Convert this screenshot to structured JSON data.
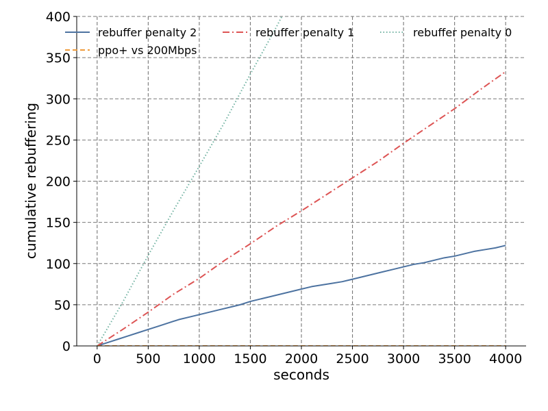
{
  "chart_data": {
    "type": "line",
    "xlabel": "seconds",
    "ylabel": "cumulative rebuffering",
    "xlim": [
      -200,
      4200
    ],
    "ylim": [
      0,
      400
    ],
    "xticks": [
      0,
      500,
      1000,
      1500,
      2000,
      2500,
      3000,
      3500,
      4000
    ],
    "yticks": [
      0,
      50,
      100,
      150,
      200,
      250,
      300,
      350,
      400
    ],
    "grid": true,
    "legend_position": "top",
    "series": [
      {
        "name": "rebuffer penalty 2",
        "color": "#4c72a0",
        "style": "solid",
        "x": [
          0,
          100,
          200,
          300,
          400,
          500,
          600,
          700,
          800,
          900,
          1000,
          1100,
          1200,
          1300,
          1400,
          1500,
          1600,
          1700,
          1800,
          1900,
          2000,
          2100,
          2200,
          2300,
          2400,
          2500,
          2600,
          2700,
          2800,
          2900,
          3000,
          3100,
          3200,
          3300,
          3400,
          3500,
          3600,
          3700,
          3800,
          3900,
          4000
        ],
        "y": [
          0,
          4,
          8,
          12,
          16,
          20,
          24,
          28,
          32,
          35,
          38,
          41,
          44,
          47,
          50,
          54,
          57,
          60,
          63,
          66,
          69,
          72,
          74,
          76,
          78,
          81,
          84,
          87,
          90,
          93,
          96,
          99,
          101,
          104,
          107,
          109,
          112,
          115,
          117,
          119,
          122
        ]
      },
      {
        "name": "rebuffer penalty 1",
        "color": "#dd5454",
        "style": "dashdot",
        "x": [
          0,
          250,
          500,
          750,
          1000,
          1250,
          1500,
          1750,
          2000,
          2250,
          2500,
          2750,
          3000,
          3250,
          3500,
          3750,
          4000
        ],
        "y": [
          0,
          20,
          41,
          63,
          82,
          104,
          124,
          145,
          164,
          184,
          204,
          224,
          246,
          267,
          288,
          311,
          333
        ]
      },
      {
        "name": "rebuffer penalty 0",
        "color": "#6fb1a0",
        "style": "dotted",
        "x": [
          0,
          250,
          500,
          750,
          1000,
          1250,
          1500,
          1750,
          1830
        ],
        "y": [
          0,
          53,
          110,
          165,
          218,
          272,
          330,
          386,
          405
        ]
      },
      {
        "name": "ppo+ vs 200Mbps",
        "color": "#ee9a3a",
        "style": "dashed",
        "x": [
          0,
          4000
        ],
        "y": [
          0,
          0
        ]
      }
    ]
  }
}
